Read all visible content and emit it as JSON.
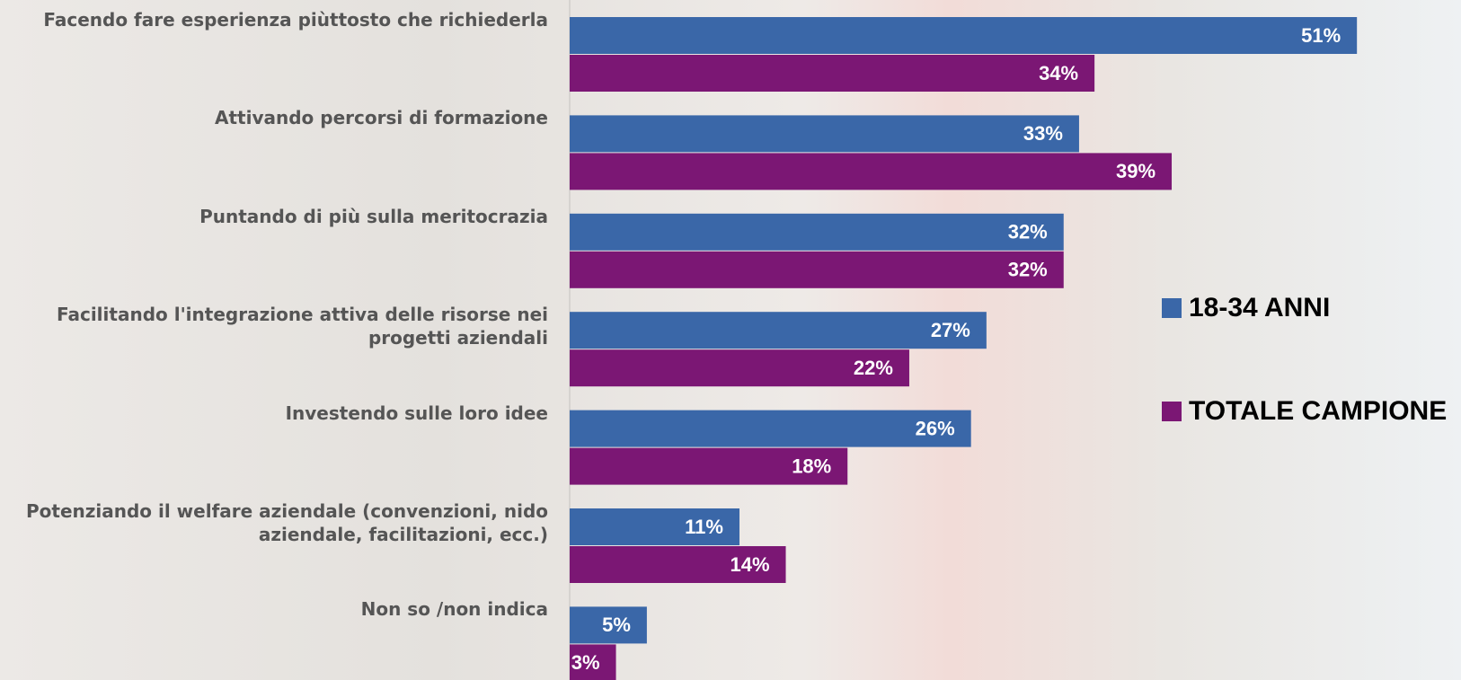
{
  "chart_data": {
    "type": "bar",
    "orientation": "horizontal",
    "categories": [
      "Facendo fare esperienza piùttosto che richiederla",
      "Attivando percorsi di formazione",
      "Puntando di più sulla meritocrazia",
      "Facilitando l'integrazione attiva delle risorse nei progetti aziendali",
      "Investendo sulle loro idee",
      "Potenziando il welfare aziendale (convenzioni, nido aziendale, facilitazioni, ecc.)",
      "Non so /non indica"
    ],
    "series": [
      {
        "name": "18-34 ANNI",
        "color": "#3a67a8",
        "values": [
          51,
          33,
          32,
          27,
          26,
          11,
          5
        ],
        "value_labels": [
          "51%",
          "33%",
          "32%",
          "27%",
          "26%",
          "11%",
          "5%"
        ]
      },
      {
        "name": "TOTALE CAMPIONE",
        "color": "#7b1774",
        "values": [
          34,
          39,
          32,
          22,
          18,
          14,
          3
        ],
        "value_labels": [
          "34%",
          "39%",
          "32%",
          "22%",
          "18%",
          "14%",
          "3%"
        ]
      }
    ],
    "legend": "right"
  }
}
